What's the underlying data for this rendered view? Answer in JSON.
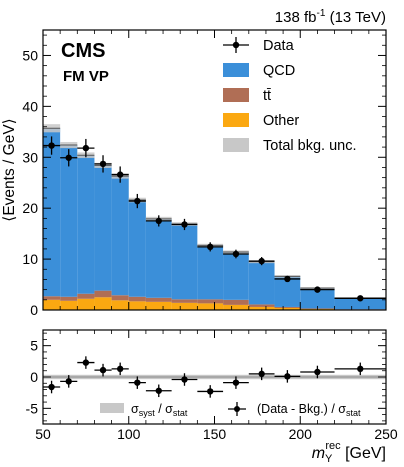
{
  "header": {
    "lumi_value": "138 fb",
    "lumi_exp": "-1",
    "lumi_rest": " (13 TeV)"
  },
  "labels": {
    "experiment": "CMS",
    "category": "FM VP"
  },
  "colors": {
    "qcd": "#3b8fd9",
    "ttbar": "#b06e55",
    "other": "#fba811",
    "unc": "#c8c8c8",
    "data": "#000000"
  },
  "chart_data": [
    {
      "type": "bar",
      "stacked": true,
      "ylabel": "⟨Events / GeV⟩",
      "ylim": [
        0,
        55
      ],
      "yticks": [
        0,
        10,
        20,
        30,
        40,
        50
      ],
      "xlim": [
        50,
        250
      ],
      "bin_edges": [
        50,
        60,
        70,
        80,
        90,
        100,
        110,
        125,
        140,
        155,
        170,
        185,
        200,
        220,
        250
      ],
      "series": [
        {
          "name": "QCD",
          "values": [
            33.0,
            29.8,
            27.2,
            24.6,
            23.4,
            19.0,
            15.5,
            14.8,
            10.6,
            9.4,
            8.4,
            6.0,
            4.0,
            2.2
          ]
        },
        {
          "name": "tt̄",
          "values": [
            0.7,
            0.8,
            1.0,
            1.3,
            1.0,
            0.9,
            0.8,
            0.7,
            0.8,
            1.0,
            0.5,
            0.2,
            0.1,
            0.05
          ]
        },
        {
          "name": "Other",
          "values": [
            2.0,
            1.8,
            2.2,
            2.5,
            1.9,
            1.7,
            1.6,
            1.4,
            1.3,
            1.0,
            0.6,
            0.4,
            0.2,
            0.1
          ]
        }
      ],
      "total_unc": [
        0.8,
        0.6,
        0.55,
        0.5,
        0.5,
        0.45,
        0.4,
        0.35,
        0.3,
        0.3,
        0.3,
        0.25,
        0.2,
        0.15
      ],
      "data": {
        "name": "Data",
        "x": [
          55,
          65,
          75,
          85,
          95,
          105,
          117.5,
          132.5,
          147.5,
          162.5,
          177.5,
          192.5,
          210,
          235
        ],
        "y": [
          32.3,
          29.9,
          31.8,
          28.7,
          26.6,
          21.4,
          17.5,
          16.8,
          12.4,
          11.0,
          9.6,
          6.1,
          4.0,
          2.3
        ],
        "err": [
          1.8,
          1.7,
          1.8,
          1.7,
          1.6,
          1.4,
          1.1,
          1.1,
          0.9,
          0.85,
          0.8,
          0.55,
          0.45,
          0.3
        ]
      },
      "legend": [
        {
          "label": "Data",
          "kind": "marker"
        },
        {
          "label": "QCD",
          "kind": "fill"
        },
        {
          "label": "tt̄",
          "kind": "fill"
        },
        {
          "label": "Other",
          "kind": "fill"
        },
        {
          "label": "Total bkg. unc.",
          "kind": "fill"
        }
      ],
      "legend_position": "top-right"
    },
    {
      "type": "scatter",
      "xlabel_main": "m",
      "xlabel_sub": "Y",
      "xlabel_sup": "rec",
      "xlabel_unit": " [GeV]",
      "xlim": [
        50,
        250
      ],
      "xticks": [
        50,
        100,
        150,
        200,
        250
      ],
      "ylim": [
        -7.5,
        7.5
      ],
      "yticks": [
        -5,
        0,
        5
      ],
      "syst_band": 0.35,
      "pull": {
        "x": [
          55,
          65,
          75,
          85,
          95,
          105,
          117.5,
          132.5,
          147.5,
          162.5,
          177.5,
          192.5,
          210,
          235
        ],
        "y": [
          -1.6,
          -0.7,
          2.3,
          1.1,
          1.3,
          -0.9,
          -2.2,
          -0.4,
          -2.3,
          -0.9,
          0.5,
          0.1,
          0.8,
          1.3
        ]
      },
      "legend": [
        {
          "label_a": "σ",
          "sub_a": "syst",
          "label_b": " / σ",
          "sub_b": "stat",
          "kind": "fill"
        },
        {
          "label_a": "(Data - Bkg.) / σ",
          "sub_a": "stat",
          "kind": "marker"
        }
      ]
    }
  ]
}
